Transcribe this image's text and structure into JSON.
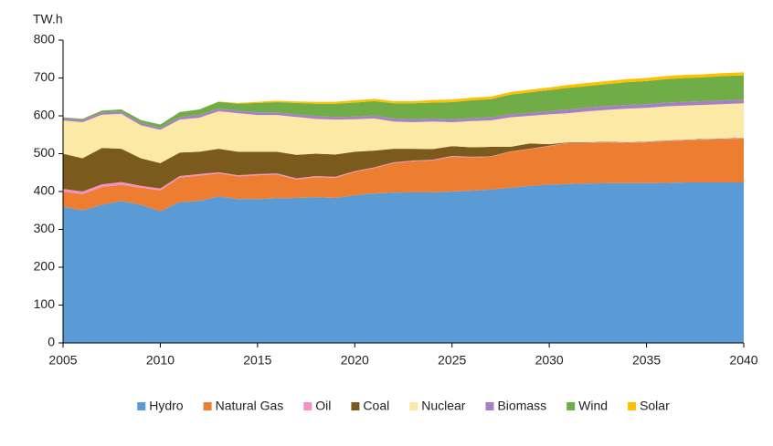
{
  "chart_data": {
    "type": "stacked_area",
    "y_label": "TW.h",
    "x": [
      2005,
      2006,
      2007,
      2008,
      2009,
      2010,
      2011,
      2012,
      2013,
      2014,
      2015,
      2016,
      2017,
      2018,
      2019,
      2020,
      2021,
      2022,
      2023,
      2024,
      2025,
      2026,
      2027,
      2028,
      2029,
      2030,
      2031,
      2032,
      2033,
      2034,
      2035,
      2036,
      2037,
      2038,
      2039,
      2040
    ],
    "xlim": [
      2005,
      2040
    ],
    "xticks": [
      2005,
      2010,
      2015,
      2020,
      2025,
      2030,
      2035,
      2040
    ],
    "ylim": [
      0,
      800
    ],
    "yticks": [
      0,
      100,
      200,
      300,
      400,
      500,
      600,
      700,
      800
    ],
    "grid": false,
    "legend": "bottom",
    "series": [
      {
        "name": "Hydro",
        "color": "#5b9bd5",
        "values": [
          360,
          350,
          365,
          375,
          365,
          348,
          372,
          375,
          387,
          380,
          380,
          382,
          383,
          385,
          383,
          390,
          395,
          397,
          398,
          398,
          400,
          402,
          405,
          410,
          415,
          418,
          420,
          421,
          422,
          422,
          422,
          423,
          424,
          424,
          424,
          424
        ]
      },
      {
        "name": "Natural Gas",
        "color": "#ed7d31",
        "values": [
          40,
          43,
          47,
          43,
          45,
          55,
          65,
          67,
          61,
          60,
          63,
          63,
          49,
          53,
          53,
          62,
          67,
          78,
          82,
          84,
          92,
          88,
          87,
          95,
          97,
          102,
          108,
          107,
          108,
          106,
          108,
          110,
          111,
          113,
          114,
          116
        ]
      },
      {
        "name": "Oil",
        "color": "#f490c4",
        "values": [
          7,
          7,
          7,
          7,
          5,
          5,
          4,
          4,
          3,
          3,
          3,
          3,
          3,
          3,
          3,
          2,
          2,
          2,
          2,
          2,
          2,
          2,
          1,
          1,
          1,
          1,
          1,
          1,
          1,
          1,
          1,
          1,
          1,
          1,
          1,
          1
        ]
      },
      {
        "name": "Coal",
        "color": "#7b5a1e",
        "values": [
          93,
          88,
          96,
          88,
          73,
          67,
          62,
          59,
          62,
          62,
          59,
          57,
          62,
          59,
          59,
          51,
          44,
          36,
          31,
          28,
          26,
          25,
          25,
          12,
          14,
          4,
          1,
          1,
          1,
          1,
          1,
          1,
          1,
          1,
          1,
          1
        ]
      },
      {
        "name": "Nuclear",
        "color": "#fde9a6",
        "values": [
          88,
          95,
          88,
          92,
          87,
          88,
          87,
          90,
          99,
          102,
          97,
          97,
          100,
          92,
          92,
          86,
          85,
          72,
          70,
          73,
          63,
          69,
          70,
          78,
          73,
          79,
          77,
          82,
          84,
          89,
          89,
          90,
          90,
          90,
          91,
          91
        ]
      },
      {
        "name": "Biomass",
        "color": "#a680c4",
        "values": [
          6,
          6,
          6,
          6,
          6,
          6,
          7,
          7,
          7,
          7,
          7,
          7,
          7,
          7,
          7,
          7,
          8,
          8,
          8,
          8,
          8,
          8,
          8,
          8,
          8,
          8,
          10,
          10,
          10,
          10,
          10,
          10,
          10,
          10,
          10,
          10
        ]
      },
      {
        "name": "Wind",
        "color": "#70ad47",
        "values": [
          2,
          3,
          5,
          6,
          8,
          8,
          13,
          15,
          18,
          18,
          25,
          27,
          30,
          33,
          35,
          37,
          38,
          40,
          42,
          42,
          45,
          47,
          48,
          52,
          54,
          56,
          57,
          57,
          58,
          60,
          61,
          62,
          63,
          63,
          64,
          64
        ]
      },
      {
        "name": "Solar",
        "color": "#ffc000",
        "values": [
          0,
          0,
          0,
          0,
          0,
          0,
          0,
          0,
          1,
          2,
          3,
          4,
          4,
          5,
          5,
          6,
          6,
          6,
          6,
          7,
          7,
          7,
          7,
          7,
          7,
          7,
          8,
          8,
          8,
          8,
          8,
          8,
          8,
          8,
          8,
          8
        ]
      }
    ]
  }
}
